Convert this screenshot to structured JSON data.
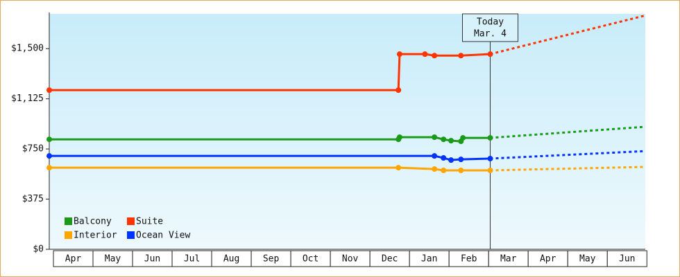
{
  "chart_data": {
    "type": "line",
    "xlim": [
      -0.105,
      14.96
    ],
    "ylim": [
      0,
      1760
    ],
    "xticks": [
      {
        "value": 0.5,
        "label": "Apr"
      },
      {
        "value": 1.5,
        "label": "May"
      },
      {
        "value": 2.5,
        "label": "Jun"
      },
      {
        "value": 3.5,
        "label": "Jul"
      },
      {
        "value": 4.5,
        "label": "Aug"
      },
      {
        "value": 5.5,
        "label": "Sep"
      },
      {
        "value": 6.5,
        "label": "Oct"
      },
      {
        "value": 7.5,
        "label": "Nov"
      },
      {
        "value": 8.5,
        "label": "Dec"
      },
      {
        "value": 9.5,
        "label": "Jan"
      },
      {
        "value": 10.5,
        "label": "Feb"
      },
      {
        "value": 11.5,
        "label": "Mar"
      },
      {
        "value": 12.5,
        "label": "Apr"
      },
      {
        "value": 13.5,
        "label": "May"
      },
      {
        "value": 14.5,
        "label": "Jun"
      }
    ],
    "yticks": [
      {
        "value": 0,
        "label": "$0"
      },
      {
        "value": 375,
        "label": "$375"
      },
      {
        "value": 750,
        "label": "$750"
      },
      {
        "value": 1125,
        "label": "$1,125"
      },
      {
        "value": 1500,
        "label": "$1,500"
      }
    ],
    "annotation": {
      "x": 11.04,
      "lines": [
        "Today",
        "Mar. 4"
      ]
    },
    "legend_position": "lower left",
    "series": [
      {
        "name": "Balcony",
        "color": "#1a9a1a",
        "x": [
          -0.105,
          8.72,
          8.75,
          9.63,
          9.86,
          10.05,
          10.3,
          10.35,
          11.04
        ],
        "values": [
          822,
          822,
          838,
          838,
          822,
          812,
          807,
          833,
          833
        ],
        "forecast_x": [
          11.04,
          14.96
        ],
        "forecast_values": [
          833,
          916
        ]
      },
      {
        "name": "Suite",
        "color": "#ff3300",
        "x": [
          -0.105,
          8.72,
          8.75,
          9.39,
          9.63,
          10.3,
          11.04
        ],
        "values": [
          1190,
          1190,
          1459,
          1459,
          1448,
          1448,
          1459
        ],
        "forecast_x": [
          11.04,
          14.96
        ],
        "forecast_values": [
          1459,
          1748
        ]
      },
      {
        "name": "Interior",
        "color": "#ffa500",
        "x": [
          -0.105,
          8.72,
          9.63,
          9.86,
          10.3,
          11.04
        ],
        "values": [
          610,
          610,
          600,
          590,
          590,
          590
        ],
        "forecast_x": [
          11.04,
          14.96
        ],
        "forecast_values": [
          590,
          616
        ]
      },
      {
        "name": "Ocean View",
        "color": "#0033ff",
        "x": [
          -0.105,
          9.63,
          9.86,
          10.05,
          10.3,
          11.04
        ],
        "values": [
          698,
          698,
          683,
          667,
          672,
          678
        ],
        "forecast_x": [
          11.04,
          14.96
        ],
        "forecast_values": [
          678,
          734
        ]
      }
    ]
  }
}
